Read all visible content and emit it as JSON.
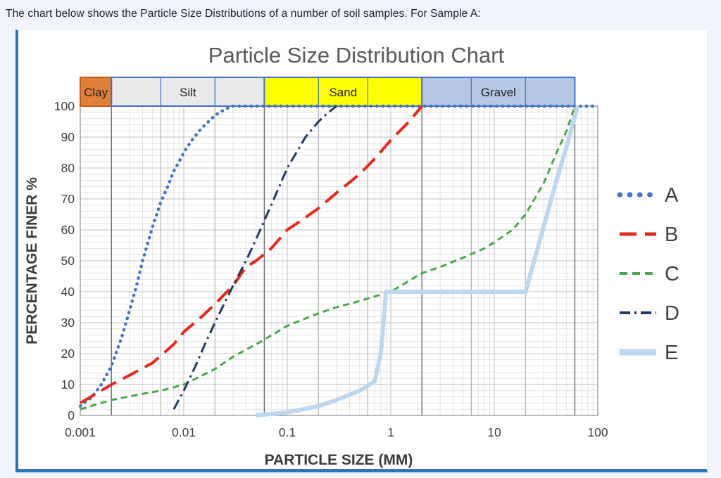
{
  "page": {
    "intro_text": "The chart below shows the Particle Size Distributions of a number of soil samples. For Sample A:"
  },
  "colors": {
    "page_background": "#F1F5FB",
    "panel_background": "#FFFFFF",
    "accent_blue": "#2E75B6",
    "title_text": "#595959",
    "axis_text": "#3F3F3F"
  },
  "chart_data": {
    "type": "line",
    "title": "Particle Size Distribution Chart",
    "xlabel": "PARTICLE SIZE (MM)",
    "ylabel": "PERCENTAGE FINER %",
    "x_scale": "log",
    "xlim": [
      0.001,
      100
    ],
    "ylim": [
      0,
      100
    ],
    "x_ticks": [
      "0.001",
      "0.01",
      "0.1",
      "1",
      "10",
      "100"
    ],
    "y_ticks": [
      0,
      10,
      20,
      30,
      40,
      50,
      60,
      70,
      80,
      90,
      100
    ],
    "grid": "major and minor gridlines on",
    "legend_position": "right",
    "legend_entries": [
      "A",
      "B",
      "C",
      "D",
      "E"
    ],
    "soil_zones": [
      {
        "label": "Clay",
        "from": 0.001,
        "to": 0.002,
        "fill": "#E0813B",
        "border": "#C55A11",
        "divisions": []
      },
      {
        "label": "Silt",
        "from": 0.002,
        "to": 0.06,
        "fill": "#E9E9E9",
        "border": "#4472C4",
        "divisions": [
          0.006,
          0.02
        ]
      },
      {
        "label": "Sand",
        "from": 0.06,
        "to": 2,
        "fill": "#FFFF00",
        "border": "#4472C4",
        "divisions": [
          0.2,
          0.6
        ]
      },
      {
        "label": "Gravel",
        "from": 2,
        "to": 60,
        "fill": "#B4C7E7",
        "border": "#4472C4",
        "divisions": [
          6,
          20
        ]
      }
    ],
    "series": [
      {
        "name": "A",
        "color": "#4472C4",
        "style": "dotted",
        "points": [
          [
            0.001,
            3
          ],
          [
            0.0013,
            6
          ],
          [
            0.0016,
            10
          ],
          [
            0.002,
            16
          ],
          [
            0.0025,
            25
          ],
          [
            0.003,
            34
          ],
          [
            0.0035,
            42
          ],
          [
            0.004,
            50
          ],
          [
            0.005,
            61
          ],
          [
            0.006,
            69
          ],
          [
            0.007,
            74
          ],
          [
            0.008,
            79
          ],
          [
            0.009,
            82
          ],
          [
            0.01,
            85
          ],
          [
            0.012,
            89
          ],
          [
            0.015,
            93
          ],
          [
            0.02,
            97
          ],
          [
            0.025,
            99
          ],
          [
            0.03,
            100
          ],
          [
            100,
            100
          ]
        ]
      },
      {
        "name": "B",
        "color": "#E8271E",
        "style": "long-dash",
        "points": [
          [
            0.001,
            4
          ],
          [
            0.002,
            10
          ],
          [
            0.003,
            13
          ],
          [
            0.005,
            17
          ],
          [
            0.008,
            23
          ],
          [
            0.01,
            27
          ],
          [
            0.015,
            32
          ],
          [
            0.02,
            36
          ],
          [
            0.03,
            42
          ],
          [
            0.04,
            48
          ],
          [
            0.05,
            50
          ],
          [
            0.07,
            54
          ],
          [
            0.1,
            60
          ],
          [
            0.15,
            64
          ],
          [
            0.2,
            67
          ],
          [
            0.3,
            72
          ],
          [
            0.5,
            78
          ],
          [
            0.7,
            83
          ],
          [
            1,
            89
          ],
          [
            1.5,
            95
          ],
          [
            2,
            100
          ]
        ]
      },
      {
        "name": "C",
        "color": "#4CA64C",
        "style": "dashed",
        "points": [
          [
            0.001,
            2
          ],
          [
            0.002,
            5
          ],
          [
            0.004,
            7
          ],
          [
            0.006,
            8
          ],
          [
            0.01,
            10
          ],
          [
            0.02,
            15
          ],
          [
            0.03,
            19
          ],
          [
            0.05,
            23
          ],
          [
            0.08,
            27
          ],
          [
            0.1,
            29
          ],
          [
            0.2,
            33
          ],
          [
            0.3,
            35
          ],
          [
            0.5,
            37
          ],
          [
            1,
            40
          ],
          [
            2,
            46
          ],
          [
            3,
            48
          ],
          [
            5,
            51
          ],
          [
            8,
            54
          ],
          [
            10,
            56
          ],
          [
            15,
            60
          ],
          [
            20,
            65
          ],
          [
            30,
            75
          ],
          [
            40,
            85
          ],
          [
            50,
            92
          ],
          [
            60,
            100
          ]
        ]
      },
      {
        "name": "D",
        "color": "#1F3864",
        "style": "dash-dot",
        "points": [
          [
            0.008,
            2
          ],
          [
            0.01,
            8
          ],
          [
            0.013,
            16
          ],
          [
            0.016,
            23
          ],
          [
            0.02,
            30
          ],
          [
            0.03,
            42
          ],
          [
            0.04,
            50
          ],
          [
            0.05,
            57
          ],
          [
            0.07,
            68
          ],
          [
            0.1,
            80
          ],
          [
            0.15,
            90
          ],
          [
            0.2,
            95
          ],
          [
            0.25,
            98
          ],
          [
            0.3,
            100
          ]
        ]
      },
      {
        "name": "E",
        "color": "#BDD7EE",
        "style": "solid",
        "points": [
          [
            0.05,
            0
          ],
          [
            0.1,
            1
          ],
          [
            0.2,
            3
          ],
          [
            0.3,
            5
          ],
          [
            0.5,
            8
          ],
          [
            0.7,
            11
          ],
          [
            0.8,
            20
          ],
          [
            0.9,
            40
          ],
          [
            20,
            40
          ],
          [
            30,
            61
          ],
          [
            40,
            76
          ],
          [
            50,
            87
          ],
          [
            64,
            100
          ]
        ]
      }
    ]
  }
}
